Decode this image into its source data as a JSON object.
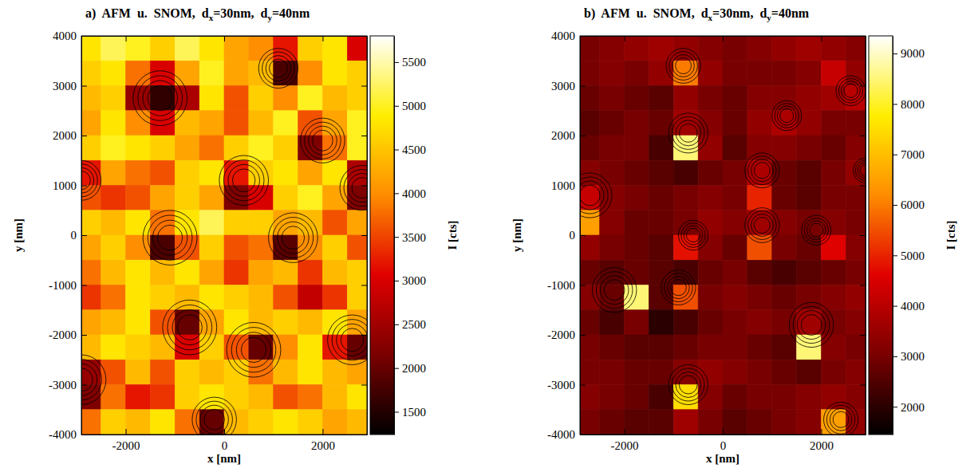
{
  "chart_data": [
    {
      "type": "heatmap",
      "title": "a) AFM u. SNOM, dx=30nm, dy=40nm",
      "x_label": "x [nm]",
      "y_label": "y [nm]",
      "colorbar_label": "I [cts]",
      "xlim": [
        -2900,
        2900
      ],
      "ylim": [
        -4000,
        4000
      ],
      "xticks": [
        -2000,
        0,
        2000
      ],
      "yticks": [
        -4000,
        -3000,
        -2000,
        -1000,
        0,
        1000,
        2000,
        3000,
        4000
      ],
      "clim": [
        1240,
        5800
      ],
      "cticks": [
        1500,
        2000,
        2500,
        3000,
        3500,
        4000,
        4500,
        5000,
        5500
      ],
      "x": [
        -2750,
        -2250,
        -1750,
        -1250,
        -750,
        -250,
        250,
        750,
        1250,
        1750,
        2250,
        2750
      ],
      "y": [
        3750,
        3250,
        2750,
        2250,
        1750,
        1250,
        750,
        250,
        -250,
        -750,
        -1250,
        -1750,
        -2250,
        -2750,
        -3250,
        -3750
      ],
      "z": [
        [
          4800,
          5200,
          5000,
          4600,
          5200,
          4800,
          4200,
          4000,
          3200,
          4600,
          4800,
          3000
        ],
        [
          4600,
          4800,
          3800,
          3000,
          4200,
          5000,
          4200,
          4400,
          1800,
          4000,
          4800,
          4600
        ],
        [
          4400,
          4600,
          2400,
          1600,
          2600,
          4800,
          3600,
          4600,
          4000,
          5000,
          4400,
          4600
        ],
        [
          4200,
          4800,
          4000,
          3000,
          4400,
          4200,
          3600,
          4400,
          5000,
          3600,
          4200,
          5000
        ],
        [
          4600,
          5000,
          4800,
          4600,
          4200,
          3800,
          4600,
          5000,
          4600,
          2200,
          3800,
          5000
        ],
        [
          3200,
          4200,
          3800,
          3600,
          4600,
          4800,
          3200,
          4600,
          4800,
          4200,
          4800,
          2600
        ],
        [
          3600,
          3400,
          3600,
          4200,
          4600,
          4200,
          2200,
          3000,
          4600,
          5000,
          4200,
          2200
        ],
        [
          4600,
          4400,
          4800,
          3800,
          4800,
          5200,
          4600,
          4600,
          4200,
          4400,
          3600,
          4200
        ],
        [
          4200,
          4600,
          4000,
          1800,
          3600,
          4600,
          3600,
          3800,
          1900,
          4000,
          4600,
          3600
        ],
        [
          3800,
          4400,
          4800,
          4400,
          4800,
          4200,
          3400,
          4200,
          4400,
          3400,
          4400,
          4600
        ],
        [
          3400,
          3800,
          4800,
          4600,
          4400,
          4800,
          4600,
          4400,
          3600,
          2800,
          3400,
          4600
        ],
        [
          4200,
          4400,
          4800,
          3600,
          2000,
          4200,
          4800,
          4400,
          4600,
          4400,
          4800,
          4200
        ],
        [
          4400,
          4800,
          4600,
          4400,
          3000,
          4600,
          3600,
          2000,
          4000,
          4800,
          3200,
          2000
        ],
        [
          2400,
          3600,
          4400,
          3600,
          4600,
          4400,
          4600,
          3800,
          4400,
          4800,
          4400,
          4200
        ],
        [
          2200,
          3800,
          3200,
          3400,
          4600,
          4800,
          4600,
          4400,
          3600,
          3800,
          4400,
          4800
        ],
        [
          3800,
          4600,
          4400,
          4800,
          3800,
          2000,
          4400,
          4600,
          4800,
          4600,
          4200,
          4400
        ]
      ],
      "particles": {
        "x": [
          -1300,
          1100,
          2000,
          400,
          2800,
          -1100,
          1400,
          -700,
          600,
          2600,
          -2900,
          -200,
          -2900
        ],
        "y": [
          2750,
          3350,
          1900,
          1100,
          950,
          -50,
          -50,
          -1850,
          -2300,
          -2100,
          -2900,
          -3700,
          1100
        ],
        "r": [
          550,
          400,
          450,
          500,
          450,
          550,
          500,
          550,
          550,
          500,
          500,
          450,
          400
        ]
      }
    },
    {
      "type": "heatmap",
      "title": "b) AFM u. SNOM, dx=30nm, dy=40nm",
      "x_label": "x [nm]",
      "y_label": "y [nm]",
      "colorbar_label": "I [cts]",
      "xlim": [
        -2900,
        2900
      ],
      "ylim": [
        -4000,
        4000
      ],
      "xticks": [
        -2000,
        0,
        2000
      ],
      "yticks": [
        -4000,
        -3000,
        -2000,
        -1000,
        0,
        1000,
        2000,
        3000,
        4000
      ],
      "clim": [
        1450,
        9350
      ],
      "cticks": [
        2000,
        3000,
        4000,
        5000,
        6000,
        7000,
        8000,
        9000
      ],
      "x": [
        -2750,
        -2250,
        -1750,
        -1250,
        -750,
        -250,
        250,
        750,
        1250,
        1750,
        2250,
        2750
      ],
      "y": [
        3750,
        3250,
        2750,
        2250,
        1750,
        1250,
        750,
        250,
        -250,
        -750,
        -1250,
        -1750,
        -2250,
        -2750,
        -3250,
        -3750
      ],
      "z": [
        [
          3000,
          3200,
          3400,
          3600,
          3400,
          3200,
          3000,
          3200,
          3400,
          3600,
          3400,
          3200
        ],
        [
          3000,
          3200,
          3000,
          3400,
          6000,
          3400,
          3000,
          3000,
          3000,
          3200,
          4200,
          3400
        ],
        [
          2800,
          3000,
          2800,
          2600,
          3400,
          3000,
          2800,
          3200,
          3200,
          3400,
          3600,
          4000
        ],
        [
          2600,
          2800,
          3000,
          2800,
          3600,
          3200,
          2800,
          3400,
          3800,
          3400,
          3000,
          3000
        ],
        [
          2800,
          3000,
          3000,
          2400,
          8500,
          3400,
          2600,
          3200,
          3200,
          3000,
          2800,
          3200
        ],
        [
          3200,
          3000,
          2800,
          2600,
          2400,
          2800,
          3000,
          3800,
          2800,
          2600,
          3000,
          3400
        ],
        [
          4200,
          3200,
          3000,
          2800,
          3000,
          3200,
          3000,
          5000,
          2800,
          2600,
          3000,
          3000
        ],
        [
          6500,
          3200,
          2800,
          2800,
          3000,
          3400,
          3200,
          3600,
          3200,
          3000,
          3200,
          3000
        ],
        [
          3400,
          3000,
          2800,
          2600,
          4800,
          3200,
          2800,
          5500,
          3000,
          2800,
          4600,
          3200
        ],
        [
          2800,
          2600,
          2800,
          2600,
          2400,
          2800,
          3000,
          2600,
          2400,
          2600,
          2800,
          3000
        ],
        [
          3200,
          2800,
          8500,
          2600,
          5500,
          3000,
          3200,
          3000,
          2800,
          3000,
          3200,
          3400
        ],
        [
          2800,
          2400,
          3000,
          2000,
          2400,
          2800,
          3000,
          3200,
          3000,
          3600,
          3000,
          3200
        ],
        [
          3000,
          2800,
          2600,
          2600,
          2800,
          3000,
          3000,
          2800,
          2600,
          8500,
          3200,
          3000
        ],
        [
          3000,
          3000,
          2800,
          2800,
          3200,
          3400,
          3200,
          3000,
          2800,
          2600,
          3000,
          3200
        ],
        [
          3200,
          3000,
          2800,
          2400,
          7500,
          3200,
          2800,
          3000,
          3000,
          3200,
          3400,
          3200
        ],
        [
          3000,
          2800,
          2600,
          2600,
          3600,
          3000,
          2600,
          2800,
          3000,
          3200,
          6500,
          3400
        ]
      ],
      "particles": {
        "x": [
          -800,
          -700,
          800,
          1300,
          2600,
          2900,
          -2700,
          -600,
          800,
          1900,
          -2200,
          -900,
          1800,
          -700,
          2400
        ],
        "y": [
          3400,
          2050,
          1300,
          2400,
          2900,
          1300,
          800,
          0,
          200,
          100,
          -1100,
          -1050,
          -1800,
          -3000,
          -3700
        ],
        "r": [
          350,
          400,
          350,
          300,
          300,
          250,
          450,
          300,
          350,
          300,
          450,
          350,
          450,
          400,
          350
        ]
      }
    }
  ]
}
